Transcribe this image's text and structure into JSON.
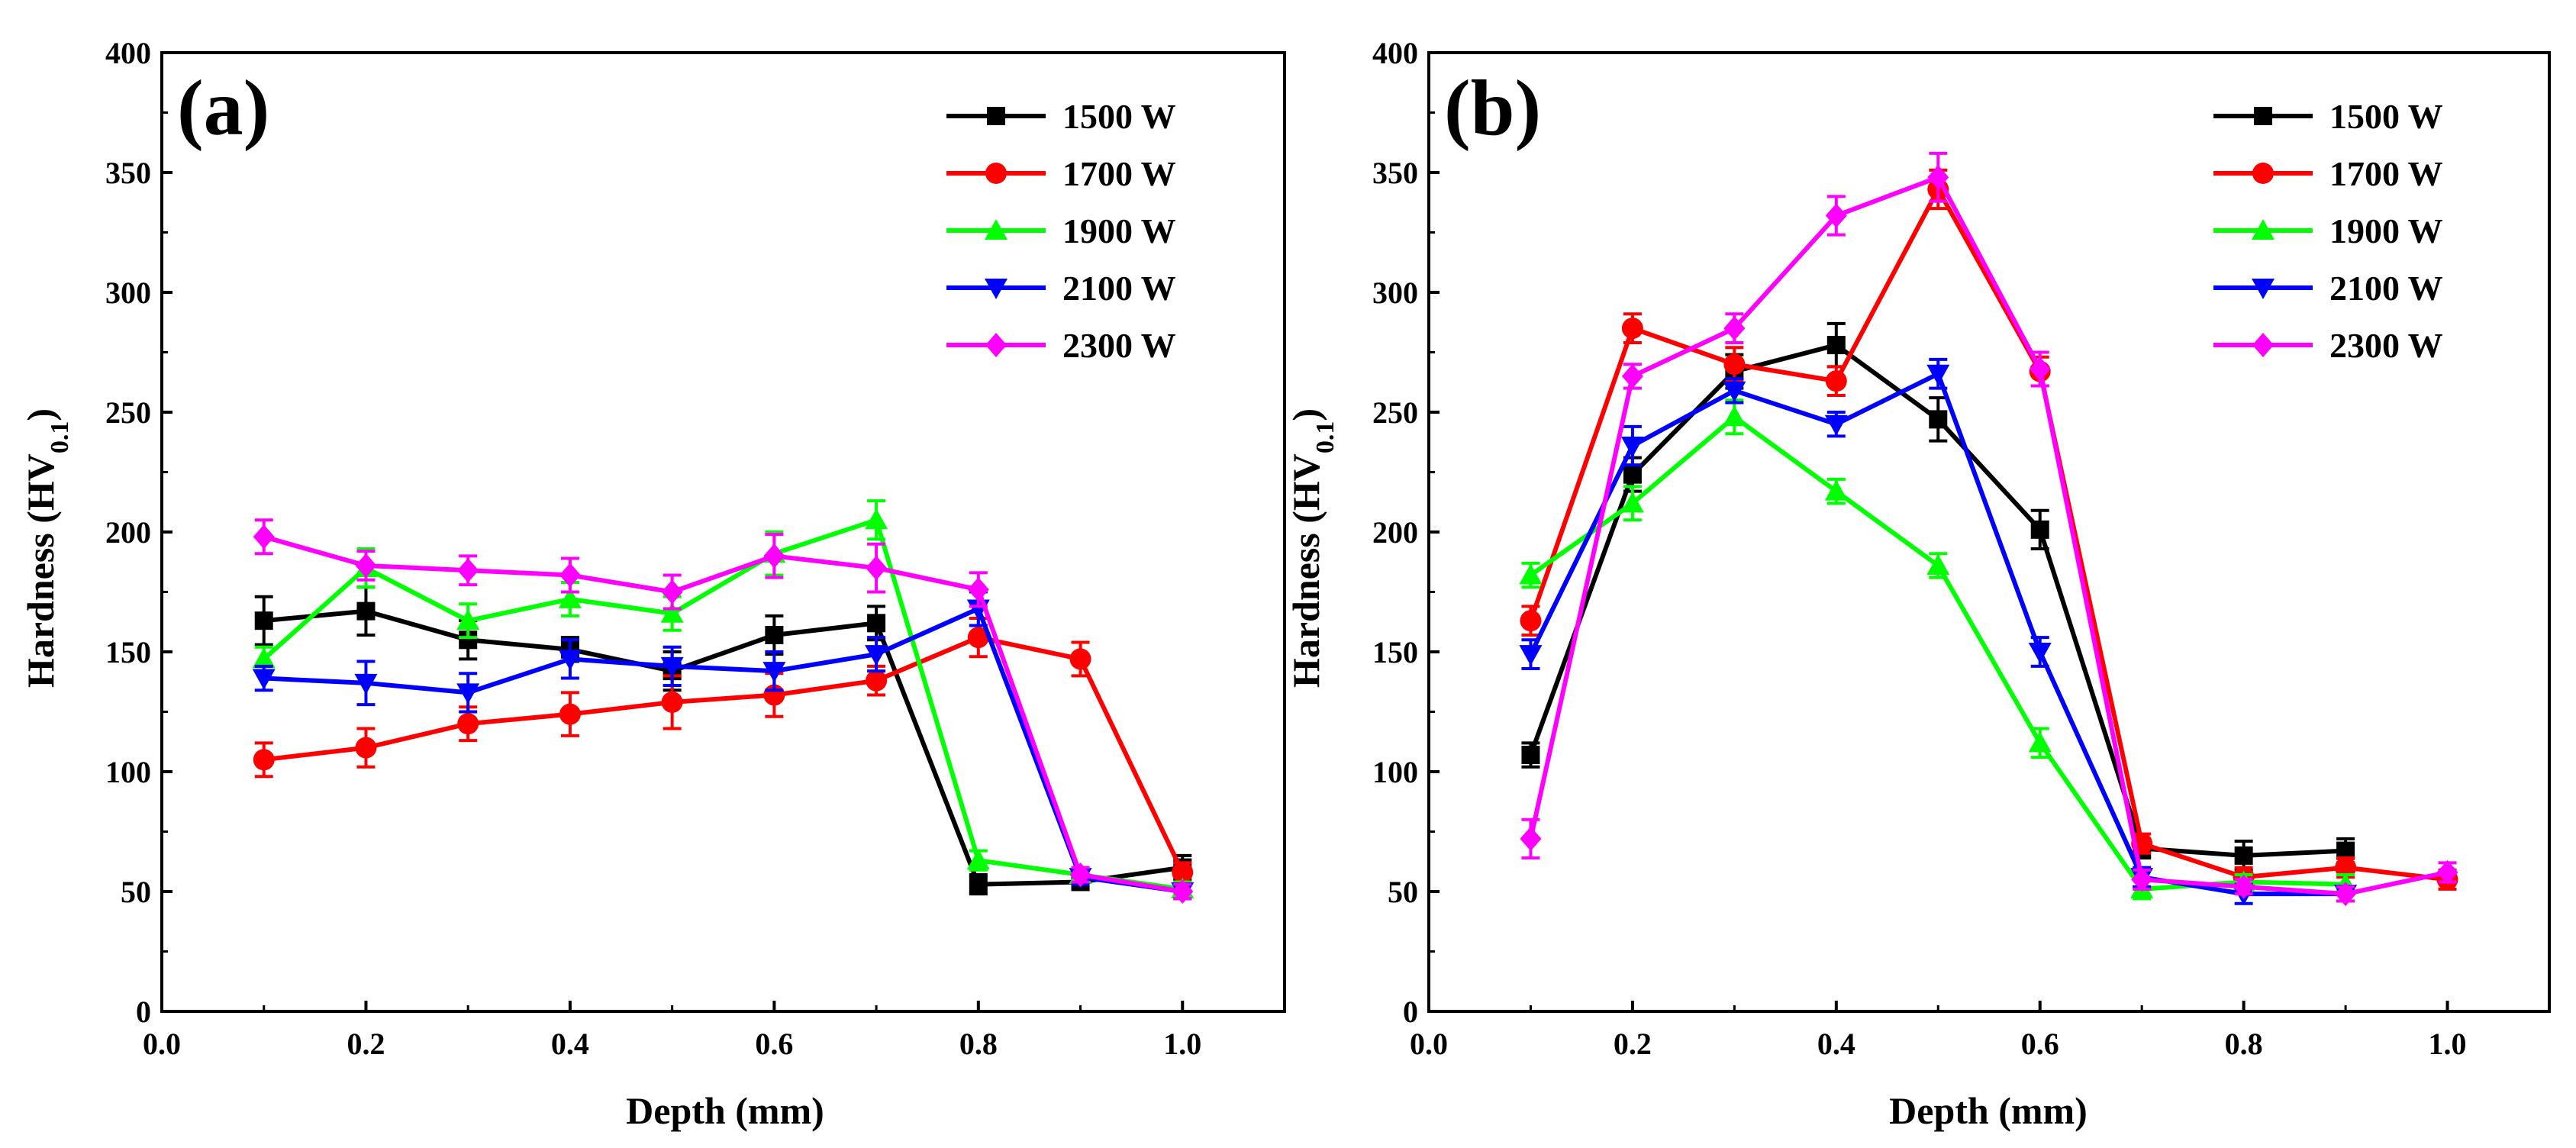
{
  "chart_data": [
    {
      "type": "line",
      "panel_label": "(a)",
      "xlabel": "Depth (mm)",
      "ylabel": "Hardness (HV0.1)",
      "ylabel_main": "Hardness (HV",
      "ylabel_sub": "0.1",
      "ylabel_close": ")",
      "xlim": [
        0.0,
        1.1
      ],
      "ylim": [
        0,
        400
      ],
      "xticks": [
        "0.0",
        "0.2",
        "0.4",
        "0.6",
        "0.8",
        "1.0"
      ],
      "yticks": [
        "0",
        "50",
        "100",
        "150",
        "200",
        "250",
        "300",
        "350",
        "400"
      ],
      "legend_position": "top-right",
      "grid": false,
      "series": [
        {
          "name": "1500 W",
          "color": "#000000",
          "marker": "square",
          "x": [
            0.1,
            0.2,
            0.3,
            0.4,
            0.5,
            0.6,
            0.7,
            0.8,
            0.9,
            1.0
          ],
          "values": [
            163,
            167,
            155,
            151,
            142,
            157,
            162,
            53,
            54,
            60
          ],
          "errors": [
            10,
            10,
            8,
            5,
            8,
            8,
            7,
            4,
            3,
            5
          ]
        },
        {
          "name": "1700 W",
          "color": "#ff0000",
          "marker": "circle",
          "x": [
            0.1,
            0.2,
            0.3,
            0.4,
            0.5,
            0.6,
            0.7,
            0.8,
            0.9,
            1.0
          ],
          "values": [
            105,
            110,
            120,
            124,
            129,
            132,
            138,
            156,
            147,
            58
          ],
          "errors": [
            7,
            8,
            7,
            9,
            11,
            9,
            6,
            8,
            7,
            4
          ]
        },
        {
          "name": "1900 W",
          "color": "#00ff00",
          "marker": "triangle-up",
          "x": [
            0.1,
            0.2,
            0.3,
            0.4,
            0.5,
            0.6,
            0.7,
            0.8,
            0.9,
            1.0
          ],
          "values": [
            147,
            185,
            163,
            172,
            166,
            191,
            205,
            63,
            57,
            51
          ],
          "errors": [
            5,
            8,
            7,
            7,
            7,
            9,
            8,
            4,
            3,
            3
          ]
        },
        {
          "name": "2100 W",
          "color": "#0000ff",
          "marker": "triangle-down",
          "x": [
            0.1,
            0.2,
            0.3,
            0.4,
            0.5,
            0.6,
            0.7,
            0.8,
            0.9,
            1.0
          ],
          "values": [
            139,
            137,
            133,
            147,
            144,
            142,
            149,
            168,
            56,
            50
          ],
          "errors": [
            5,
            9,
            8,
            8,
            8,
            8,
            7,
            7,
            3,
            3
          ]
        },
        {
          "name": "2300 W",
          "color": "#ff00ff",
          "marker": "diamond",
          "x": [
            0.1,
            0.2,
            0.3,
            0.4,
            0.5,
            0.6,
            0.7,
            0.8,
            0.9,
            1.0
          ],
          "values": [
            198,
            186,
            184,
            182,
            175,
            190,
            185,
            176,
            57,
            50
          ],
          "errors": [
            7,
            6,
            6,
            7,
            7,
            9,
            10,
            7,
            3,
            3
          ]
        }
      ]
    },
    {
      "type": "line",
      "panel_label": "(b)",
      "xlabel": "Depth (mm)",
      "ylabel": "Hardness (HV0.1)",
      "ylabel_main": "Hardness (HV",
      "ylabel_sub": "0.1",
      "ylabel_close": ")",
      "xlim": [
        0.0,
        1.1
      ],
      "ylim": [
        0,
        400
      ],
      "xticks": [
        "0.0",
        "0.2",
        "0.4",
        "0.6",
        "0.8",
        "1.0"
      ],
      "yticks": [
        "0",
        "50",
        "100",
        "150",
        "200",
        "250",
        "300",
        "350",
        "400"
      ],
      "legend_position": "top-right",
      "grid": false,
      "series": [
        {
          "name": "1500 W",
          "color": "#000000",
          "marker": "square",
          "x": [
            0.1,
            0.2,
            0.3,
            0.4,
            0.5,
            0.6,
            0.7,
            0.8,
            0.9
          ],
          "values": [
            107,
            224,
            267,
            278,
            247,
            201,
            68,
            65,
            67
          ],
          "errors": [
            5,
            7,
            7,
            9,
            9,
            8,
            4,
            6,
            5
          ]
        },
        {
          "name": "1700 W",
          "color": "#ff0000",
          "marker": "circle",
          "x": [
            0.1,
            0.2,
            0.3,
            0.4,
            0.5,
            0.6,
            0.7,
            0.8,
            0.9,
            1.0
          ],
          "values": [
            163,
            285,
            270,
            263,
            343,
            267,
            70,
            56,
            60,
            55
          ],
          "errors": [
            6,
            6,
            7,
            6,
            8,
            6,
            4,
            4,
            4,
            4
          ]
        },
        {
          "name": "1900 W",
          "color": "#00ff00",
          "marker": "triangle-up",
          "x": [
            0.1,
            0.2,
            0.3,
            0.4,
            0.5,
            0.6,
            0.7,
            0.8,
            0.9
          ],
          "values": [
            182,
            212,
            248,
            217,
            186,
            112,
            51,
            54,
            53
          ],
          "errors": [
            5,
            7,
            7,
            5,
            5,
            6,
            4,
            3,
            4
          ]
        },
        {
          "name": "2100 W",
          "color": "#0000ff",
          "marker": "triangle-down",
          "x": [
            0.1,
            0.2,
            0.3,
            0.4,
            0.5,
            0.6,
            0.7,
            0.8,
            0.9
          ],
          "values": [
            149,
            236,
            259,
            245,
            266,
            150,
            56,
            49,
            49
          ],
          "errors": [
            6,
            8,
            5,
            5,
            6,
            6,
            4,
            4,
            3
          ]
        },
        {
          "name": "2300 W",
          "color": "#ff00ff",
          "marker": "diamond",
          "x": [
            0.1,
            0.2,
            0.3,
            0.4,
            0.5,
            0.6,
            0.7,
            0.8,
            0.9,
            1.0
          ],
          "values": [
            72,
            265,
            285,
            332,
            348,
            268,
            55,
            52,
            49,
            58
          ],
          "errors": [
            8,
            5,
            6,
            8,
            10,
            7,
            4,
            3,
            3,
            4
          ]
        }
      ]
    }
  ]
}
